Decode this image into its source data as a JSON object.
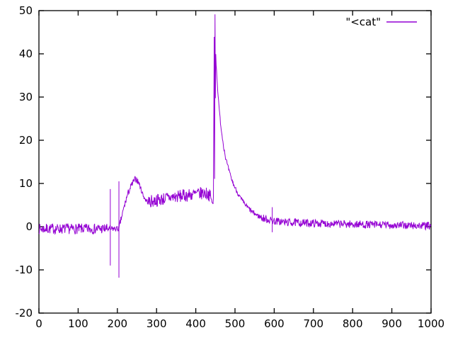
{
  "window": {
    "background_color": "#ffffff"
  },
  "chart_data": {
    "type": "line",
    "title": "",
    "xlabel": "",
    "ylabel": "",
    "legend_label": "\"<cat\"",
    "legend_position": "top-right",
    "grid": false,
    "series_color": "#9400D3",
    "axis_color": "#000000",
    "xlim": [
      0,
      1000
    ],
    "ylim": [
      -20,
      50
    ],
    "xticks": [
      0,
      100,
      200,
      300,
      400,
      500,
      600,
      700,
      800,
      900,
      1000
    ],
    "yticks": [
      -20,
      -10,
      0,
      10,
      20,
      30,
      40,
      50
    ],
    "series": [
      {
        "name": "\"<cat\"",
        "style": "noisy-line",
        "baseline_points": [
          [
            0,
            -0.5
          ],
          [
            178,
            -0.5
          ],
          [
            182,
            -0.6
          ],
          [
            186,
            -0.5
          ],
          [
            200,
            -0.5
          ],
          [
            204,
            -0.4
          ],
          [
            207,
            0.8
          ],
          [
            212,
            2.6
          ],
          [
            218,
            4.8
          ],
          [
            224,
            6.8
          ],
          [
            230,
            8.4
          ],
          [
            237,
            9.7
          ],
          [
            243,
            10.7
          ],
          [
            248,
            11.1
          ],
          [
            252,
            10.6
          ],
          [
            257,
            9.6
          ],
          [
            262,
            8.2
          ],
          [
            267,
            7.0
          ],
          [
            272,
            6.2
          ],
          [
            278,
            5.7
          ],
          [
            285,
            5.8
          ],
          [
            295,
            6.0
          ],
          [
            310,
            6.3
          ],
          [
            330,
            6.7
          ],
          [
            355,
            7.0
          ],
          [
            380,
            7.3
          ],
          [
            405,
            7.6
          ],
          [
            422,
            7.8
          ],
          [
            432,
            7.6
          ],
          [
            438,
            6.8
          ],
          [
            442,
            5.6
          ],
          [
            444,
            5.1
          ],
          [
            445,
            7.0
          ],
          [
            447,
            44.0
          ],
          [
            448,
            11.0
          ],
          [
            449,
            49.3
          ],
          [
            450,
            30.0
          ],
          [
            451,
            40.0
          ],
          [
            452,
            37.5
          ],
          [
            454,
            34.5
          ],
          [
            456,
            31.5
          ],
          [
            459,
            28.0
          ],
          [
            462,
            25.0
          ],
          [
            466,
            21.8
          ],
          [
            471,
            18.6
          ],
          [
            476,
            16.0
          ],
          [
            482,
            13.8
          ],
          [
            489,
            11.6
          ],
          [
            497,
            9.6
          ],
          [
            506,
            7.9
          ],
          [
            515,
            6.5
          ],
          [
            524,
            5.3
          ],
          [
            534,
            4.3
          ],
          [
            545,
            3.3
          ],
          [
            557,
            2.6
          ],
          [
            570,
            2.0
          ],
          [
            585,
            1.6
          ],
          [
            600,
            1.3
          ],
          [
            625,
            1.05
          ],
          [
            660,
            0.9
          ],
          [
            700,
            0.8
          ],
          [
            760,
            0.65
          ],
          [
            830,
            0.5
          ],
          [
            900,
            0.35
          ],
          [
            1000,
            0.15
          ]
        ],
        "spikes": [
          {
            "x": 182,
            "top": 8.7,
            "bottom": -9.0
          },
          {
            "x": 204,
            "top": 10.5,
            "bottom": -11.8
          },
          {
            "x": 595,
            "top": 4.5,
            "bottom": -1.3
          }
        ],
        "noise_segments": [
          {
            "from": 0,
            "to": 178,
            "amp": 1.2
          },
          {
            "from": 178,
            "to": 207,
            "amp": 0.7
          },
          {
            "from": 207,
            "to": 252,
            "amp": 0.8
          },
          {
            "from": 252,
            "to": 280,
            "amp": 0.55
          },
          {
            "from": 280,
            "to": 438,
            "amp": 1.5
          },
          {
            "from": 438,
            "to": 460,
            "amp": 0.3
          },
          {
            "from": 460,
            "to": 530,
            "amp": 0.5
          },
          {
            "from": 530,
            "to": 565,
            "amp": 0.6
          },
          {
            "from": 565,
            "to": 1001,
            "amp": 0.9
          }
        ],
        "sample_step": 1,
        "noise_seed": 7
      }
    ]
  }
}
